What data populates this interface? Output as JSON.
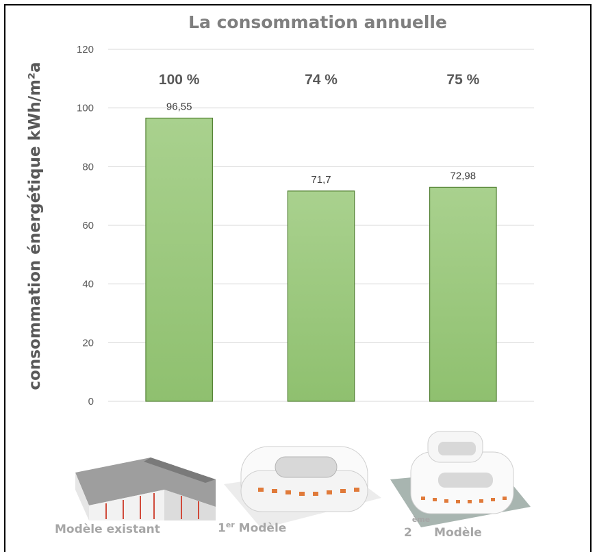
{
  "chart_data": {
    "type": "bar",
    "title": "La consommation annuelle",
    "xlabel": "",
    "ylabel": "consommation énergétique kWh/m²a",
    "categories": [
      "Modèle existant",
      "1er Modèle",
      "2ème Modèle"
    ],
    "values": [
      96.55,
      71.7,
      72.98
    ],
    "value_labels": [
      "96,55",
      "71,7",
      "72,98"
    ],
    "percent_labels": [
      "100 %",
      "74 %",
      "75 %"
    ],
    "ylim": [
      0,
      120
    ],
    "yticks": [
      0,
      20,
      40,
      60,
      80,
      100,
      120
    ],
    "grid": true,
    "bar_color": "#a9d18e",
    "bar_edge_color": "#548235"
  },
  "captions": {
    "existing": "Modèle existant",
    "first_num": "1",
    "first_sup": "er",
    "first_word": "Modèle",
    "second_num": "2",
    "second_sup": "ème",
    "second_word": "Modèle"
  }
}
